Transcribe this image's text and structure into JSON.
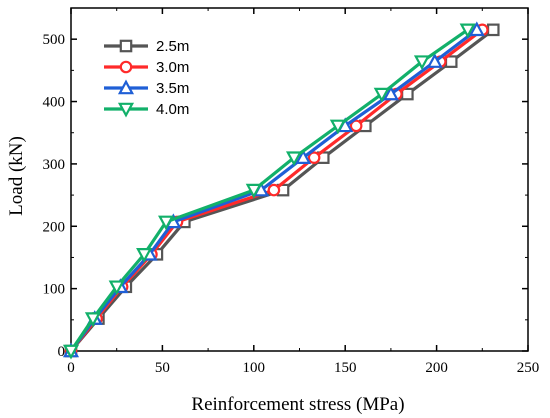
{
  "chart_data": {
    "type": "line",
    "xlabel": "Reinforcement stress (MPa)",
    "ylabel": "Load (kN)",
    "xlim": [
      0,
      250
    ],
    "ylim": [
      0,
      550
    ],
    "xticks": [
      0,
      50,
      100,
      150,
      200,
      250
    ],
    "yticks": [
      0,
      100,
      200,
      300,
      400,
      500
    ],
    "grid": false,
    "legend_position": "top-left",
    "series": [
      {
        "name": "2.5m",
        "color": "#555555",
        "marker": "square",
        "x": [
          0,
          15,
          30,
          47,
          62,
          116,
          138,
          161,
          184,
          208,
          231
        ],
        "y": [
          0,
          52,
          103,
          155,
          207,
          258,
          310,
          361,
          412,
          464,
          515
        ]
      },
      {
        "name": "3.0m",
        "color": "#ff2a2a",
        "marker": "circle",
        "x": [
          0,
          14,
          28,
          44,
          58,
          111,
          133,
          156,
          178,
          202,
          225
        ],
        "y": [
          0,
          52,
          103,
          155,
          207,
          258,
          310,
          361,
          412,
          464,
          515
        ]
      },
      {
        "name": "3.5m",
        "color": "#1f5fd6",
        "marker": "triangle-up",
        "x": [
          0,
          13,
          27,
          43,
          56,
          104,
          127,
          150,
          175,
          199,
          222
        ],
        "y": [
          0,
          52,
          103,
          155,
          207,
          258,
          310,
          361,
          412,
          464,
          515
        ]
      },
      {
        "name": "4.0m",
        "color": "#12b06a",
        "marker": "triangle-down",
        "x": [
          0,
          12,
          25,
          40,
          52,
          100,
          122,
          146,
          170,
          192,
          217
        ],
        "y": [
          0,
          52,
          103,
          155,
          207,
          258,
          310,
          361,
          412,
          464,
          515
        ]
      }
    ]
  }
}
